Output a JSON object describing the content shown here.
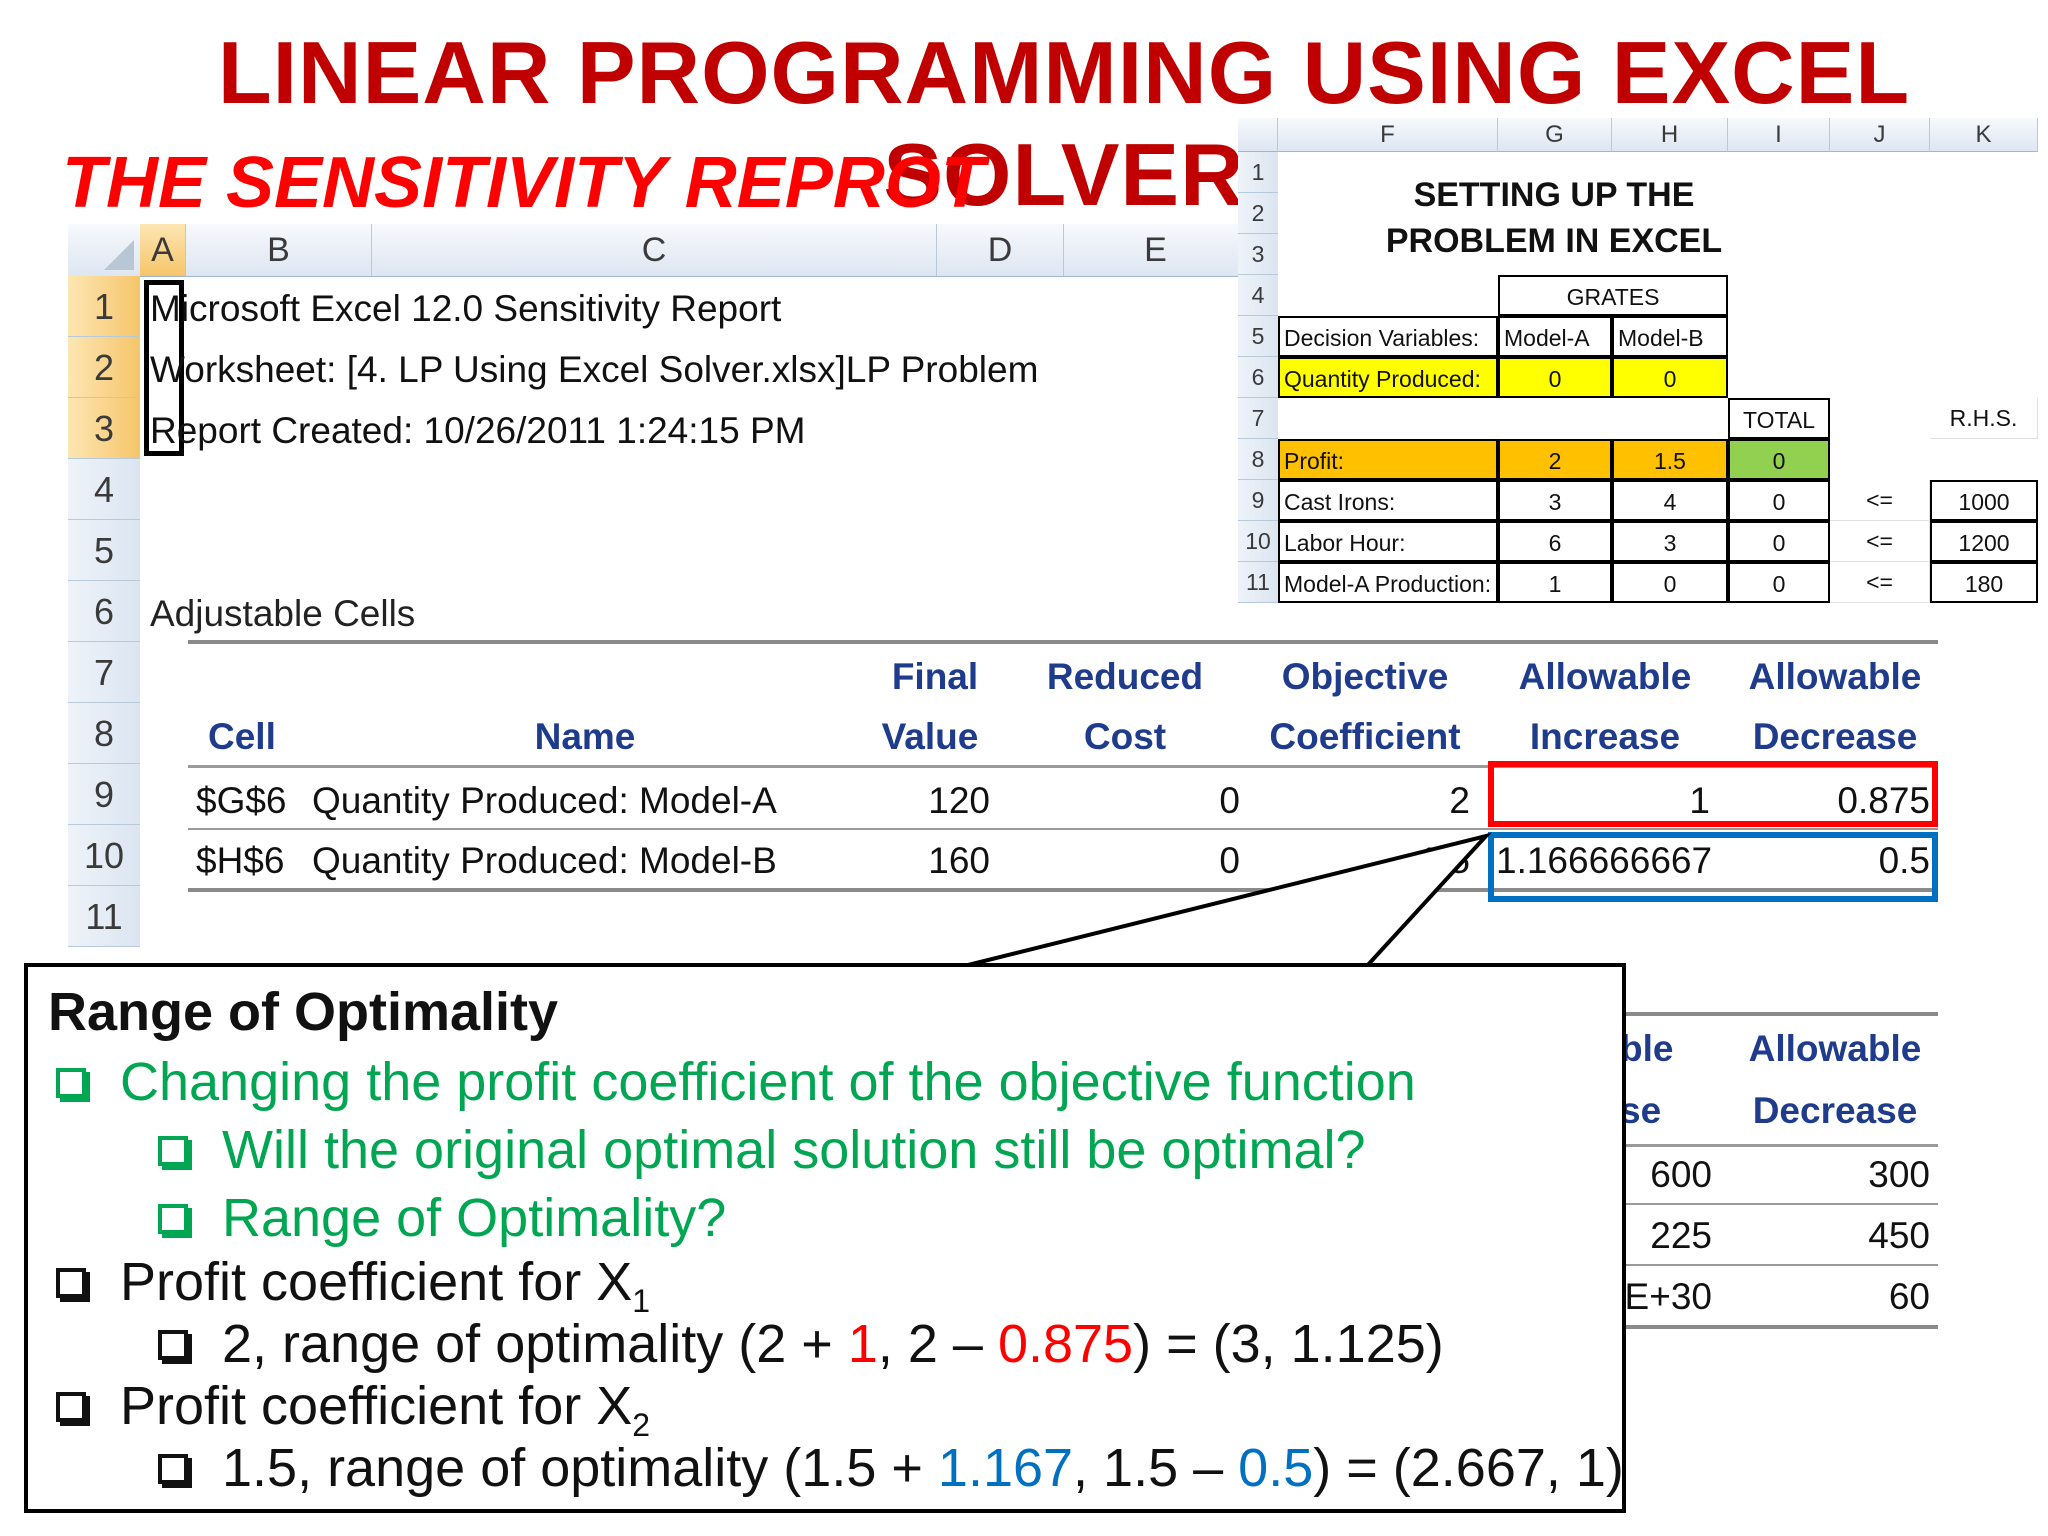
{
  "title": "LINEAR PROGRAMMING USING EXCEL SOLVER",
  "subtitle": "THE SENSITIVITY REPROT",
  "report_sheet": {
    "columns": [
      "A",
      "B",
      "C",
      "D",
      "E"
    ],
    "rows": [
      "1",
      "2",
      "3",
      "4",
      "5",
      "6",
      "7",
      "8",
      "9",
      "10",
      "11"
    ],
    "line1": "Microsoft Excel 12.0 Sensitivity Report",
    "line2": "Worksheet: [4. LP Using Excel Solver.xlsx]LP Problem",
    "line3": "Report Created: 10/26/2011 1:24:15 PM",
    "section_label": "Adjustable Cells",
    "headers_top": [
      "Final",
      "Reduced",
      "Objective",
      "Allowable",
      "Allowable"
    ],
    "headers_bottom": [
      "Cell",
      "Name",
      "Value",
      "Cost",
      "Coefficient",
      "Increase",
      "Decrease"
    ],
    "data": [
      {
        "cell": "$G$6",
        "name": "Quantity Produced: Model-A",
        "final": "120",
        "reduced": "0",
        "coef": "2",
        "inc": "1",
        "dec": "0.875"
      },
      {
        "cell": "$H$6",
        "name": "Quantity Produced: Model-B",
        "final": "160",
        "reduced": "0",
        "coef": "1.5",
        "inc": "1.166666667",
        "dec": "0.5"
      }
    ],
    "hidden_headers": [
      "ble",
      "Allowable",
      "se",
      "Decrease"
    ],
    "hidden_rows": [
      {
        "inc": "600",
        "dec": "300"
      },
      {
        "inc": "225",
        "dec": "450"
      },
      {
        "inc": "E+30",
        "dec": "60"
      }
    ]
  },
  "setup_sheet": {
    "columns": [
      "F",
      "G",
      "H",
      "I",
      "J",
      "K"
    ],
    "rows": [
      "1",
      "2",
      "3",
      "4",
      "5",
      "6",
      "7",
      "8",
      "9",
      "10",
      "11"
    ],
    "heading_line1": "SETTING UP THE",
    "heading_line2": "PROBLEM IN EXCEL",
    "grates": "GRATES",
    "dv_label": "Decision Variables:",
    "model_a": "Model-A",
    "model_b": "Model-B",
    "qp_label": "Quantity Produced:",
    "qp_a": "0",
    "qp_b": "0",
    "total": "TOTAL",
    "rhs": "R.H.S.",
    "profit_label": "Profit:",
    "profit_a": "2",
    "profit_b": "1.5",
    "profit_total": "0",
    "constraints": [
      {
        "label": "Cast Irons:",
        "a": "3",
        "b": "4",
        "total": "0",
        "op": "<=",
        "rhs": "1000"
      },
      {
        "label": "Labor Hour:",
        "a": "6",
        "b": "3",
        "total": "0",
        "op": "<=",
        "rhs": "1200"
      },
      {
        "label": "Model-A Production:",
        "a": "1",
        "b": "0",
        "total": "0",
        "op": "<=",
        "rhs": "180"
      }
    ]
  },
  "callout": {
    "heading": "Range of Optimality",
    "b1": "Changing the profit coefficient of the objective function",
    "b1a": "Will the original optimal solution still be optimal?",
    "b1b": "Range of Optimality?",
    "b2": "Profit coefficient for X",
    "b2_sub": "1",
    "b2a_pre": "2, range of optimality (2 + ",
    "b2a_inc": "1",
    "b2a_mid": ", 2 – ",
    "b2a_dec": "0.875",
    "b2a_post": ") = (3, 1.125)",
    "b3": "Profit coefficient for X",
    "b3_sub": "2",
    "b3a_pre": "1.5, range of optimality (1.5 + ",
    "b3a_inc": "1.167",
    "b3a_mid": ", 1.5 – ",
    "b3a_dec": "0.5",
    "b3a_post": ") = (2.667, 1)"
  },
  "colors": {
    "title": "#c00000",
    "subtitle": "#ff0000",
    "highlight_red": "#ff0000",
    "highlight_blue": "#0070c0",
    "green_text": "#00a651"
  }
}
